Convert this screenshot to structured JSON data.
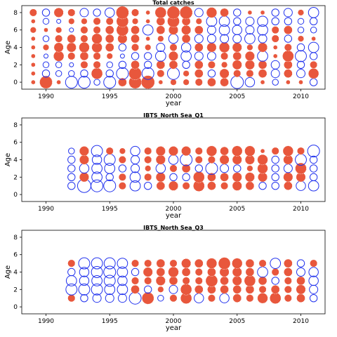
{
  "colors": {
    "positive": "#e8573c",
    "negative": "#2233ee",
    "frame": "#000000"
  },
  "chart_data": [
    {
      "type": "scatter",
      "encoding": "bubble residuals",
      "title": "Total catches",
      "xlabel": "year",
      "ylabel": "Age",
      "xlim": [
        1988.1,
        2011.9
      ],
      "ylim": [
        -0.8,
        8.8
      ],
      "xticks": [
        1990,
        1995,
        2000,
        2005,
        2010
      ],
      "yticks": [
        0,
        2,
        4,
        6,
        8
      ],
      "years": [
        1989,
        1990,
        1991,
        1992,
        1993,
        1994,
        1995,
        1996,
        1997,
        1998,
        1999,
        2000,
        2001,
        2002,
        2003,
        2004,
        2005,
        2006,
        2007,
        2008,
        2009,
        2010,
        2011
      ],
      "ages": [
        0,
        1,
        2,
        3,
        4,
        5,
        6,
        7,
        8
      ],
      "residuals": [
        [
          0.1,
          0.1,
          0.1,
          0.1,
          0.1,
          0.1,
          0.2,
          0.1,
          0.3
        ],
        [
          0.9,
          -0.3,
          -0.2,
          -0.1,
          0.2,
          -0.2,
          0.1,
          -0.2,
          -0.3
        ],
        [
          0.1,
          -0.2,
          -0.2,
          0.6,
          0.5,
          0.3,
          0.2,
          -0.1,
          0.5
        ],
        [
          -0.8,
          -0.2,
          -0.1,
          0.3,
          0.5,
          0.4,
          -0.1,
          0.2,
          0.3
        ],
        [
          -0.8,
          -0.3,
          0.3,
          0.4,
          0.6,
          0.3,
          0.3,
          0.2,
          -0.4
        ],
        [
          -0.2,
          0.7,
          0.3,
          0.3,
          0.6,
          0.6,
          0.3,
          0.3,
          -0.3
        ],
        [
          -0.8,
          -0.3,
          -0.2,
          0.2,
          0.4,
          0.4,
          0.4,
          0.3,
          -0.5
        ],
        [
          0.4,
          -0.8,
          -0.3,
          -0.1,
          -0.3,
          0.5,
          0.8,
          0.8,
          0.9
        ],
        [
          0.9,
          0.9,
          0.4,
          -0.3,
          0.3,
          0.4,
          0.4,
          0.2,
          0.3
        ],
        [
          1.0,
          -0.8,
          -0.3,
          -0.3,
          0.2,
          0.1,
          -0.6,
          0.1,
          0.1
        ],
        [
          0.1,
          0.3,
          0.4,
          -0.6,
          -0.4,
          0.2,
          0.4,
          0.4,
          0.7
        ],
        [
          0.2,
          -0.8,
          0.4,
          0.5,
          0.3,
          -0.5,
          0.5,
          0.8,
          0.9
        ],
        [
          0.2,
          0.2,
          -0.3,
          -0.6,
          -0.5,
          0.4,
          0.5,
          0.4,
          0.9
        ],
        [
          0.3,
          0.4,
          0.4,
          -0.4,
          0.4,
          -0.4,
          0.4,
          0.2,
          -0.4
        ],
        [
          0.4,
          -0.3,
          0.3,
          -0.4,
          0.5,
          -0.4,
          -0.4,
          -0.6,
          0.6
        ],
        [
          0.4,
          0.5,
          0.2,
          0.3,
          0.6,
          -0.4,
          -0.6,
          -0.6,
          0.4
        ],
        [
          -0.9,
          0.3,
          0.5,
          0.4,
          0.5,
          -0.4,
          -0.5,
          -0.3,
          -0.3
        ],
        [
          -0.5,
          0.3,
          0.5,
          0.5,
          0.2,
          -0.6,
          -0.4,
          -0.4,
          0.1
        ],
        [
          0.1,
          0.4,
          0.4,
          -0.6,
          0.5,
          -0.4,
          -0.6,
          -0.6,
          0.1
        ],
        [
          -0.2,
          -0.4,
          -0.4,
          0.1,
          0.1,
          0.3,
          0.3,
          -0.3,
          -0.3
        ],
        [
          0.1,
          0.4,
          0.4,
          0.7,
          0.3,
          -0.3,
          0.4,
          -0.3,
          -0.4
        ],
        [
          0.1,
          -0.4,
          -0.3,
          -0.7,
          -0.3,
          0.2,
          -0.2,
          -0.2,
          0.2
        ],
        [
          -0.3,
          0.6,
          0.3,
          -0.3,
          -0.6,
          0.1,
          -0.2,
          -0.3,
          -0.6
        ]
      ]
    },
    {
      "type": "scatter",
      "encoding": "bubble residuals",
      "title": "IBTS_North Sea_Q1",
      "xlabel": "year",
      "ylabel": "Age",
      "xlim": [
        1988.1,
        2011.9
      ],
      "ylim": [
        -0.8,
        8.8
      ],
      "xticks": [
        1990,
        1995,
        2000,
        2005,
        2010
      ],
      "yticks": [
        0,
        2,
        4,
        6,
        8
      ],
      "years": [
        1992,
        1993,
        1994,
        1995,
        1996,
        1997,
        1998,
        1999,
        2000,
        2001,
        2002,
        2003,
        2004,
        2005,
        2006,
        2007,
        2008,
        2009,
        2010,
        2011
      ],
      "ages": [
        1,
        2,
        3,
        4,
        5
      ],
      "residuals": [
        [
          -0.3,
          -0.3,
          -0.3,
          -0.3,
          -0.2
        ],
        [
          -1.0,
          0.5,
          -0.5,
          0.5,
          0.5
        ],
        [
          -0.8,
          -0.6,
          -0.6,
          -0.5,
          -0.7
        ],
        [
          -0.8,
          -0.3,
          -0.6,
          -0.7,
          0.3
        ],
        [
          0.3,
          0.3,
          -0.3,
          0.3,
          0.2
        ],
        [
          -0.6,
          -0.6,
          -0.4,
          -0.4,
          -0.5
        ],
        [
          -0.3,
          0.3,
          0.2,
          0.3,
          0.3
        ],
        [
          0.4,
          0.5,
          -0.5,
          0.5,
          0.5
        ],
        [
          0.5,
          -0.3,
          0.3,
          -0.5,
          0.5
        ],
        [
          0.3,
          -0.3,
          0.4,
          -0.8,
          0.5
        ],
        [
          0.7,
          0.7,
          -0.3,
          0.3,
          0.3
        ],
        [
          0.4,
          0.4,
          -0.8,
          0.3,
          0.6
        ],
        [
          0.3,
          0.4,
          -0.4,
          0.5,
          0.4
        ],
        [
          0.5,
          0.5,
          -0.3,
          0.5,
          0.6
        ],
        [
          0.4,
          0.5,
          0.2,
          0.5,
          0.6
        ],
        [
          -0.3,
          0.5,
          0.6,
          0.6,
          0.1
        ],
        [
          -0.3,
          -0.3,
          -0.3,
          -0.3,
          0.3
        ],
        [
          0.4,
          0.5,
          -0.4,
          0.5,
          0.6
        ],
        [
          -0.5,
          0.5,
          0.7,
          -0.7,
          0.3
        ],
        [
          -0.6,
          -0.3,
          -0.3,
          -0.3,
          -0.8
        ]
      ]
    },
    {
      "type": "scatter",
      "encoding": "bubble residuals",
      "title": "IBTS_North Sea_Q3",
      "xlabel": "year",
      "ylabel": "Age",
      "xlim": [
        1988.1,
        2011.9
      ],
      "ylim": [
        -0.8,
        8.8
      ],
      "xticks": [
        1990,
        1995,
        2000,
        2005,
        2010
      ],
      "yticks": [
        0,
        2,
        4,
        6,
        8
      ],
      "years": [
        1992,
        1993,
        1994,
        1995,
        1996,
        1997,
        1998,
        1999,
        2000,
        2001,
        2002,
        2003,
        2004,
        2005,
        2006,
        2007,
        2008,
        2009,
        2010,
        2011
      ],
      "ages": [
        1,
        2,
        3,
        4,
        5
      ],
      "residuals": [
        [
          0.3,
          -0.7,
          -0.6,
          -0.3,
          0.3
        ],
        [
          -0.3,
          -0.7,
          -0.5,
          -0.5,
          -0.7
        ],
        [
          -0.4,
          -0.7,
          -0.6,
          -0.7,
          -0.7
        ],
        [
          -0.4,
          -0.6,
          -0.7,
          -0.8,
          -0.7
        ],
        [
          -0.4,
          -0.6,
          -0.5,
          -0.6,
          -0.6
        ],
        [
          -0.8,
          0.4,
          0.3,
          -0.3,
          0.3
        ],
        [
          0.8,
          -0.3,
          0.3,
          0.5,
          0.3
        ],
        [
          -0.2,
          0.2,
          0.5,
          0.4,
          0.4
        ],
        [
          0.3,
          -0.4,
          0.4,
          0.6,
          0.3
        ],
        [
          0.7,
          0.7,
          0.3,
          0.4,
          0.5
        ],
        [
          -0.5,
          0.4,
          0.3,
          0.3,
          0.4
        ],
        [
          0.3,
          0.4,
          0.8,
          0.4,
          0.6
        ],
        [
          -0.5,
          0.4,
          0.4,
          0.5,
          0.8
        ],
        [
          0.4,
          0.4,
          0.5,
          0.5,
          0.6
        ],
        [
          0.3,
          0.4,
          0.7,
          0.4,
          0.4
        ],
        [
          0.6,
          0.3,
          0.4,
          -0.6,
          0.3
        ],
        [
          0.7,
          0.4,
          -0.3,
          0.3,
          -0.6
        ],
        [
          0.3,
          0.3,
          0.3,
          0.4,
          0.4
        ],
        [
          0.4,
          0.5,
          0.4,
          -0.4,
          -0.3
        ],
        [
          -0.3,
          -0.4,
          -0.5,
          -0.5,
          0.3
        ]
      ]
    }
  ]
}
